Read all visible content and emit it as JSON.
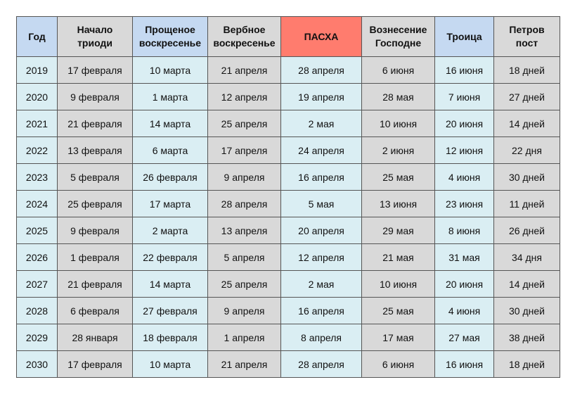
{
  "table": {
    "header": [
      "Год",
      "Начало\nтриоди",
      "Прощеное\nвоскресенье",
      "Вербное\nвоскресенье",
      "ПАСХА",
      "Вознесение\nГосподне",
      "Троица",
      "Петров\nпост"
    ],
    "rows": [
      [
        "2019",
        "17 февраля",
        "10 марта",
        "21 апреля",
        "28 апреля",
        "6 июня",
        "16 июня",
        "18 дней"
      ],
      [
        "2020",
        "9 февраля",
        "1 марта",
        "12 апреля",
        "19 апреля",
        "28 мая",
        "7 июня",
        "27 дней"
      ],
      [
        "2021",
        "21 февраля",
        "14 марта",
        "25 апреля",
        "2 мая",
        "10 июня",
        "20 июня",
        "14 дней"
      ],
      [
        "2022",
        "13 февраля",
        "6 марта",
        "17 апреля",
        "24 апреля",
        "2 июня",
        "12 июня",
        "22 дня"
      ],
      [
        "2023",
        "5 февраля",
        "26 февраля",
        "9 апреля",
        "16 апреля",
        "25 мая",
        "4 июня",
        "30 дней"
      ],
      [
        "2024",
        "25 февраля",
        "17 марта",
        "28 апреля",
        "5 мая",
        "13 июня",
        "23 июня",
        "11 дней"
      ],
      [
        "2025",
        "9 февраля",
        "2 марта",
        "13 апреля",
        "20 апреля",
        "29 мая",
        "8 июня",
        "26 дней"
      ],
      [
        "2026",
        "1 февраля",
        "22 февраля",
        "5 апреля",
        "12 апреля",
        "21 мая",
        "31 мая",
        "34 дня"
      ],
      [
        "2027",
        "21 февраля",
        "14 марта",
        "25 апреля",
        "2 мая",
        "10 июня",
        "20 июня",
        "14 дней"
      ],
      [
        "2028",
        "6 февраля",
        "27 февраля",
        "9 апреля",
        "16 апреля",
        "25 мая",
        "4 июня",
        "30 дней"
      ],
      [
        "2029",
        "28 января",
        "18 февраля",
        "1 апреля",
        "8 апреля",
        "17 мая",
        "27 мая",
        "38 дней"
      ],
      [
        "2030",
        "17 февраля",
        "10 марта",
        "21 апреля",
        "28 апреля",
        "6 июня",
        "16 июня",
        "18 дней"
      ]
    ]
  }
}
